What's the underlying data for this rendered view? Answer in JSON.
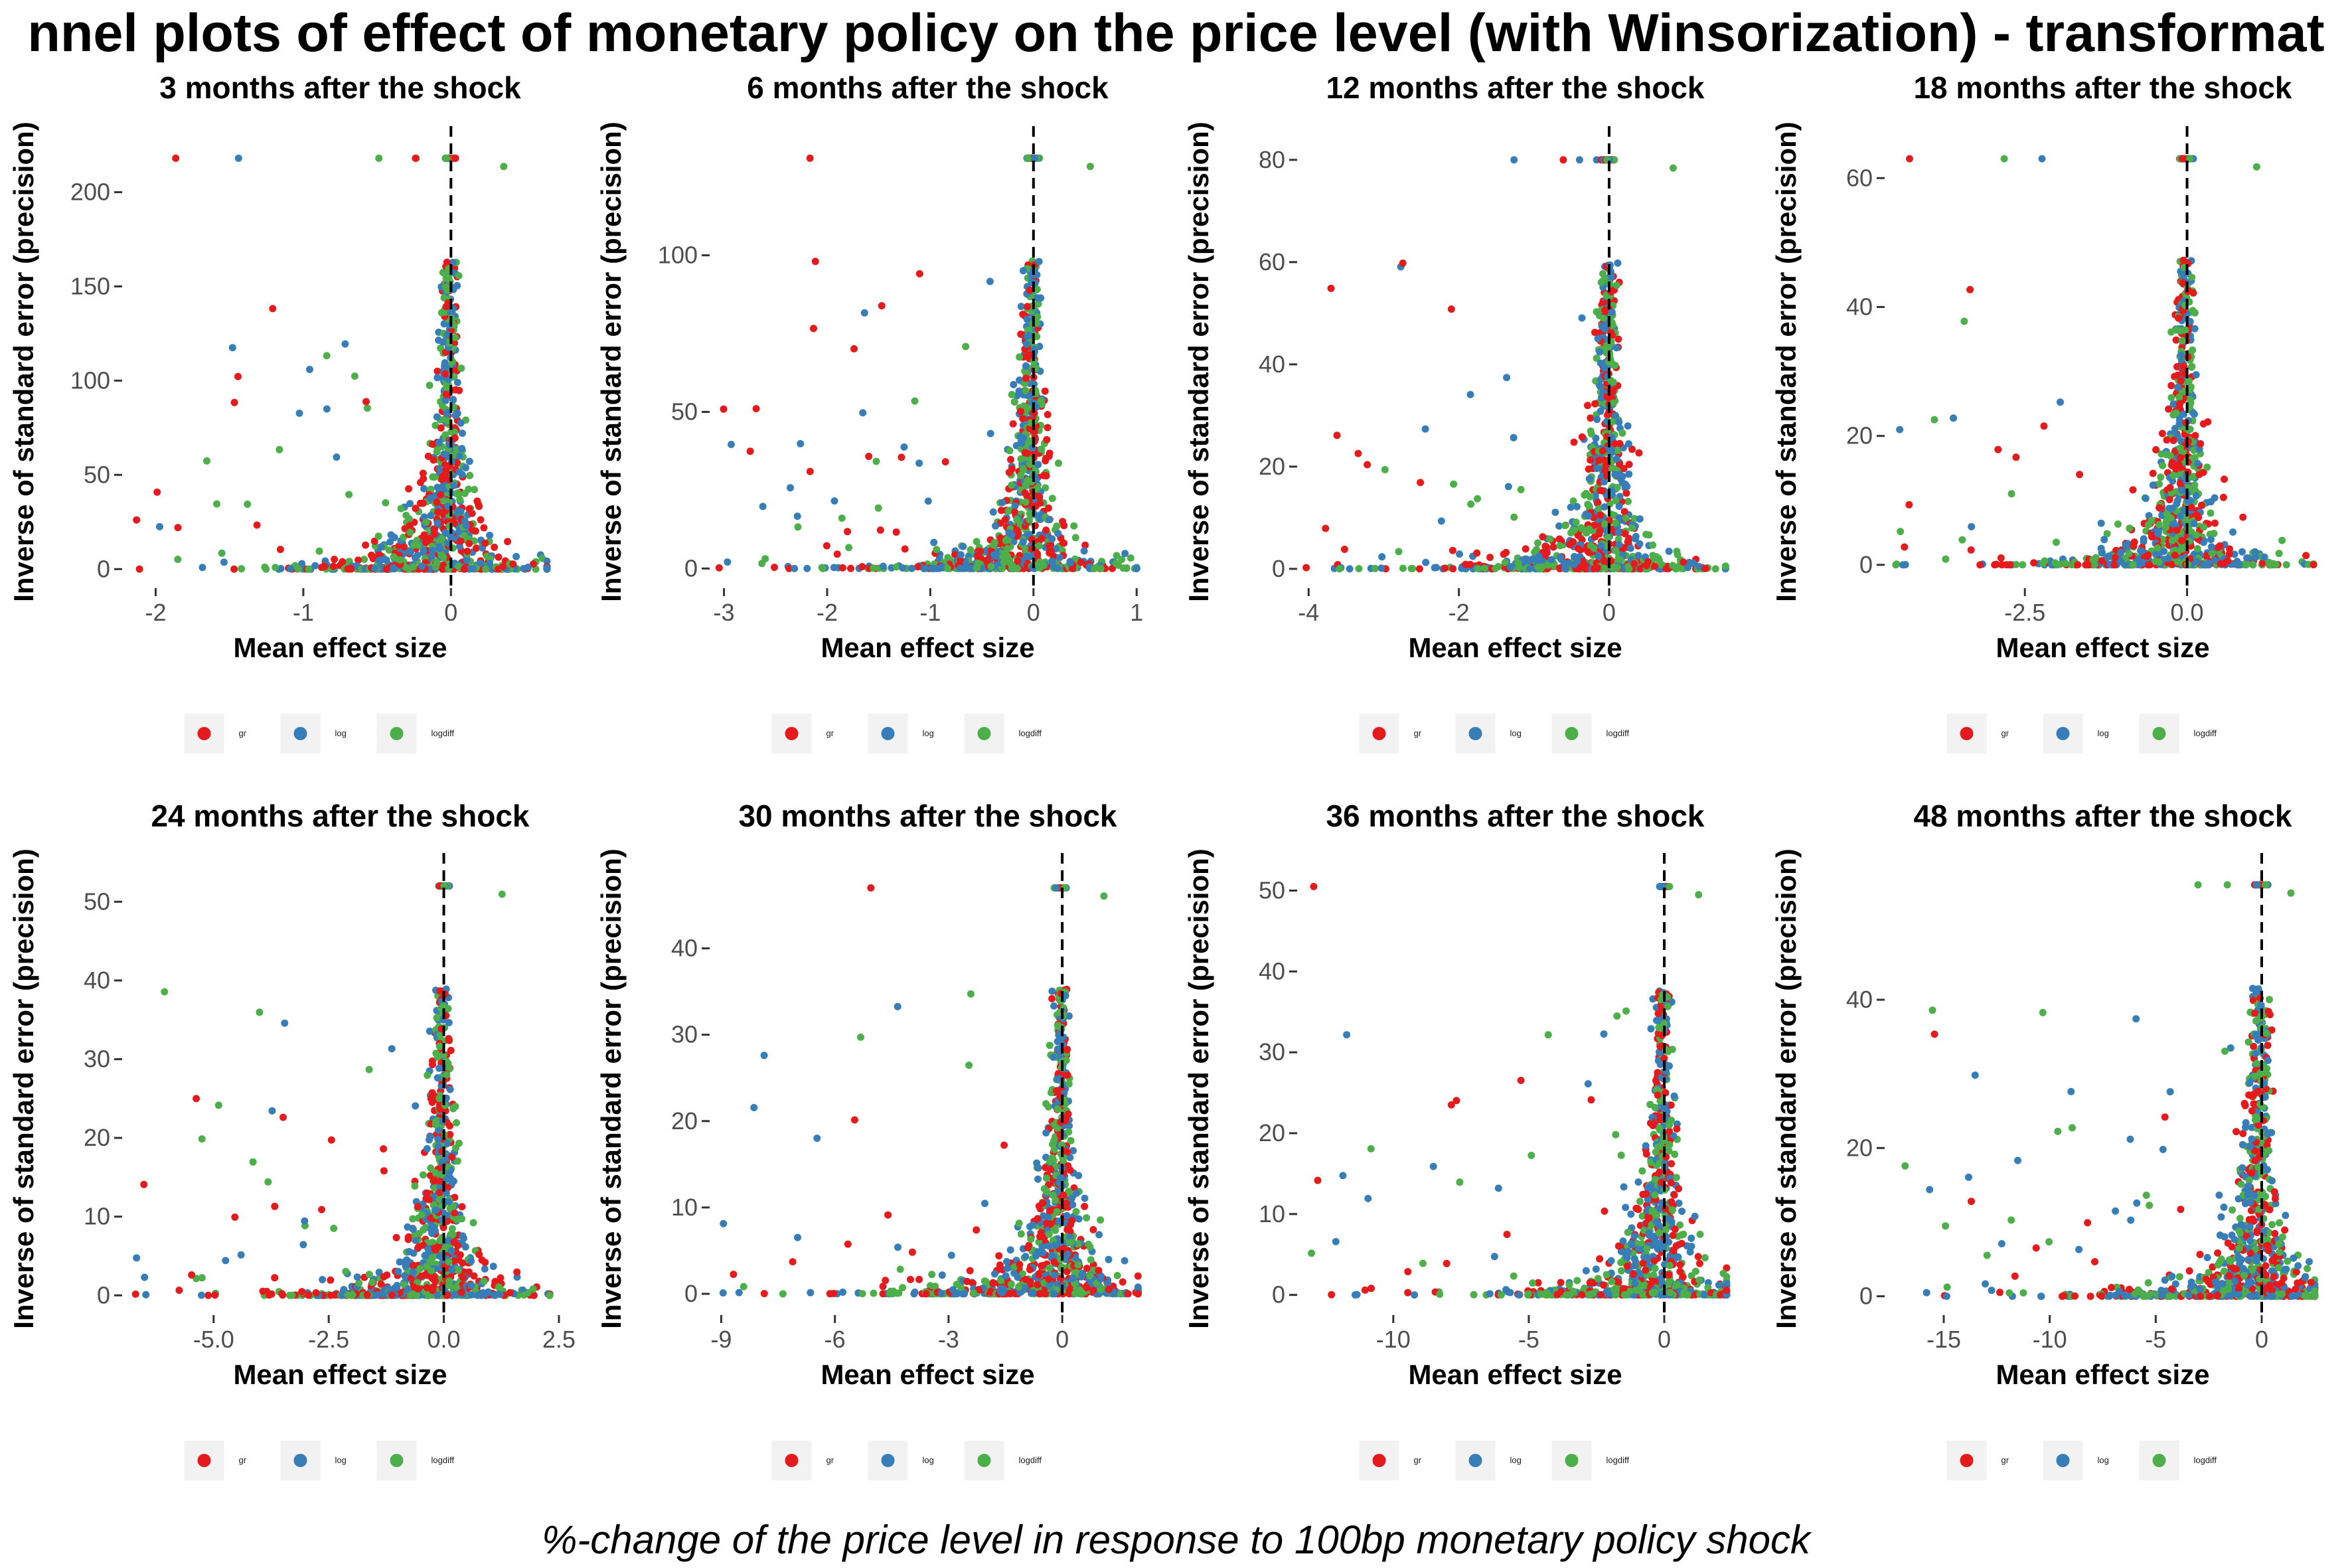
{
  "title": "nnel plots of effect of monetary policy on the price level (with Winsorization) - transformat",
  "caption": "%-change of the price level in response to 100bp monetary policy shock",
  "colors": {
    "gr": "#E41A1C",
    "log": "#377EB8",
    "logdiff": "#4DAF4A"
  },
  "chart_data": [
    {
      "type": "scatter",
      "title": "3 months after the shock",
      "xlabel": "Mean effect size",
      "ylabel": "Inverse of standard error (precision)",
      "xlim": [
        -2.2,
        0.7
      ],
      "ylim": [
        -8,
        228
      ],
      "xticks": [
        -2,
        -1,
        0
      ],
      "yticks": [
        0,
        50,
        100,
        150,
        200
      ],
      "xtick_labels": [
        "-2",
        "-1",
        "0"
      ],
      "ytick_labels": [
        "0",
        "50",
        "100",
        "150",
        "200"
      ],
      "ymax_value": 218,
      "xmin_value": -2.15,
      "xmax_value": 0.65,
      "legend": [
        "gr",
        "log",
        "logdiff"
      ],
      "legend_position": "bottom",
      "vline_x": 0
    },
    {
      "type": "scatter",
      "title": "6 months after the shock",
      "xlabel": "Mean effect size",
      "ylabel": "Inverse of standard error (precision)",
      "xlim": [
        -3.1,
        1.05
      ],
      "ylim": [
        -5,
        137
      ],
      "xticks": [
        -3,
        -2,
        -1,
        0,
        1
      ],
      "yticks": [
        0,
        50,
        100
      ],
      "xtick_labels": [
        "-3",
        "-2",
        "-1",
        "0",
        "1"
      ],
      "ytick_labels": [
        "0",
        "50",
        "100"
      ],
      "ymax_value": 131,
      "xmin_value": -3.05,
      "xmax_value": 1.0,
      "legend": [
        "gr",
        "log",
        "logdiff"
      ],
      "legend_position": "bottom",
      "vline_x": 0
    },
    {
      "type": "scatter",
      "title": "12 months after the shock",
      "xlabel": "Mean effect size",
      "ylabel": "Inverse of standard error (precision)",
      "xlim": [
        -4.1,
        1.6
      ],
      "ylim": [
        -3,
        84
      ],
      "xticks": [
        -4,
        -2,
        0
      ],
      "yticks": [
        0,
        20,
        40,
        60,
        80
      ],
      "xtick_labels": [
        "-4",
        "-2",
        "0"
      ],
      "ytick_labels": [
        "0",
        "20",
        "40",
        "60",
        "80"
      ],
      "ymax_value": 80,
      "xmin_value": -4.05,
      "xmax_value": 1.55,
      "legend": [
        "gr",
        "log",
        "logdiff"
      ],
      "legend_position": "bottom",
      "vline_x": 0
    },
    {
      "type": "scatter",
      "title": "18 months after the shock",
      "xlabel": "Mean effect size",
      "ylabel": "Inverse of standard error (precision)",
      "xlim": [
        -4.6,
        2.0
      ],
      "ylim": [
        -3,
        66
      ],
      "xticks": [
        -2.5,
        0
      ],
      "yticks": [
        0,
        20,
        40,
        60
      ],
      "xtick_labels": [
        "-2.5",
        "0.0"
      ],
      "ytick_labels": [
        "0",
        "20",
        "40",
        "60"
      ],
      "ymax_value": 63,
      "xmin_value": -4.5,
      "xmax_value": 1.95,
      "legend": [
        "gr",
        "log",
        "logdiff"
      ],
      "legend_position": "bottom",
      "vline_x": 0
    },
    {
      "type": "scatter",
      "title": "24 months after the shock",
      "xlabel": "Mean effect size",
      "ylabel": "Inverse of standard error (precision)",
      "xlim": [
        -6.9,
        2.4
      ],
      "ylim": [
        -2,
        54.5
      ],
      "xticks": [
        -5,
        -2.5,
        0,
        2.5
      ],
      "yticks": [
        0,
        10,
        20,
        30,
        40,
        50
      ],
      "xtick_labels": [
        "-5.0",
        "-2.5",
        "0.0",
        "2.5"
      ],
      "ytick_labels": [
        "0",
        "10",
        "20",
        "30",
        "40",
        "50"
      ],
      "ymax_value": 52,
      "xmin_value": -6.8,
      "xmax_value": 2.3,
      "legend": [
        "gr",
        "log",
        "logdiff"
      ],
      "legend_position": "bottom",
      "vline_x": 0
    },
    {
      "type": "scatter",
      "title": "30 months after the shock",
      "xlabel": "Mean effect size",
      "ylabel": "Inverse of standard error (precision)",
      "xlim": [
        -9.2,
        2.1
      ],
      "ylim": [
        -2,
        49.5
      ],
      "xticks": [
        -9,
        -6,
        -3,
        0
      ],
      "yticks": [
        0,
        10,
        20,
        30,
        40
      ],
      "xtick_labels": [
        "-9",
        "-6",
        "-3",
        "0"
      ],
      "ytick_labels": [
        "0",
        "10",
        "20",
        "30",
        "40"
      ],
      "ymax_value": 47,
      "xmin_value": -9.1,
      "xmax_value": 2.0,
      "legend": [
        "gr",
        "log",
        "logdiff"
      ],
      "legend_position": "bottom",
      "vline_x": 0
    },
    {
      "type": "scatter",
      "title": "36 months after the shock",
      "xlabel": "Mean effect size",
      "ylabel": "Inverse of standard error (precision)",
      "xlim": [
        -13.4,
        2.4
      ],
      "ylim": [
        -2,
        53
      ],
      "xticks": [
        -10,
        -5,
        0
      ],
      "yticks": [
        0,
        10,
        20,
        30,
        40,
        50
      ],
      "xtick_labels": [
        "-10",
        "-5",
        "0"
      ],
      "ytick_labels": [
        "0",
        "10",
        "20",
        "30",
        "40",
        "50"
      ],
      "ymax_value": 50.5,
      "xmin_value": -13.2,
      "xmax_value": 2.3,
      "legend": [
        "gr",
        "log",
        "logdiff"
      ],
      "legend_position": "bottom",
      "vline_x": 0
    },
    {
      "type": "scatter",
      "title": "48 months after the shock",
      "xlabel": "Mean effect size",
      "ylabel": "Inverse of standard error (precision)",
      "xlim": [
        -17.6,
        2.6
      ],
      "ylim": [
        -2,
        58
      ],
      "xticks": [
        -15,
        -10,
        -5,
        0
      ],
      "yticks": [
        0,
        20,
        40
      ],
      "xtick_labels": [
        "-15",
        "-10",
        "-5",
        "0"
      ],
      "ytick_labels": [
        "0",
        "20",
        "40"
      ],
      "ymax_value": 55.5,
      "xmin_value": -17.3,
      "xmax_value": 2.5,
      "legend": [
        "gr",
        "log",
        "logdiff"
      ],
      "legend_position": "bottom",
      "vline_x": 0
    }
  ]
}
